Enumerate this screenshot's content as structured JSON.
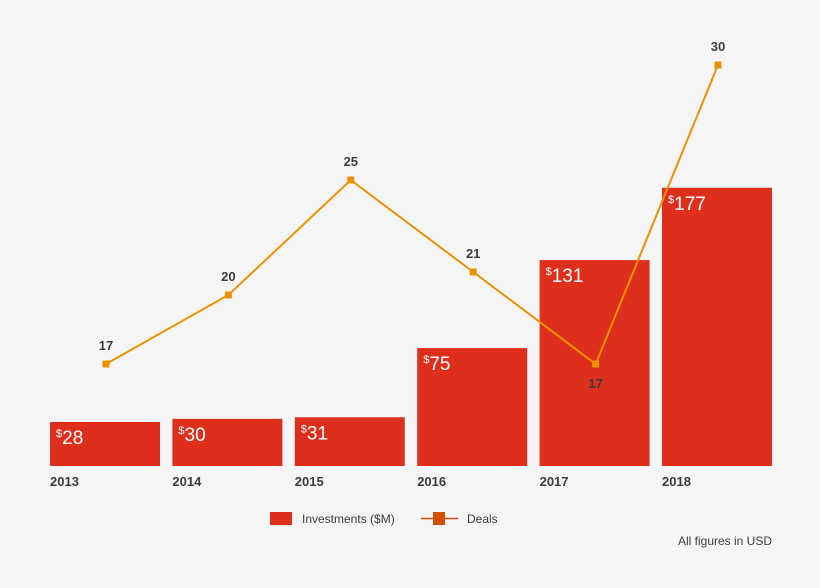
{
  "chart_data": {
    "type": "bar+line",
    "categories": [
      "2013",
      "2014",
      "2015",
      "2016",
      "2017",
      "2018"
    ],
    "series": [
      {
        "name": "Investments ($M)",
        "type": "bar",
        "values": [
          28,
          30,
          31,
          75,
          131,
          177
        ],
        "labels": [
          "$28",
          "$30",
          "$31",
          "$75",
          "$131",
          "$177"
        ],
        "color": "#de2f1d"
      },
      {
        "name": "Deals",
        "type": "line",
        "values": [
          17,
          20,
          25,
          21,
          17,
          30
        ],
        "color": "#ec9200",
        "marker_color": "#d24f00"
      }
    ],
    "legend": "bottom-center",
    "note": "All figures in USD",
    "grid": false
  }
}
